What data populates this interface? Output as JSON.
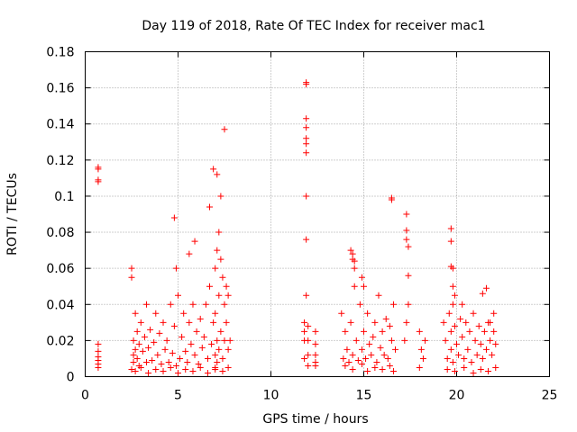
{
  "chart_data": {
    "type": "scatter",
    "title": "Day 119 of 2018, Rate Of TEC Index for receiver mac1",
    "xlabel": "GPS time / hours",
    "ylabel": "ROTI / TECUs",
    "xlim": [
      0,
      25
    ],
    "ylim": [
      0,
      0.18
    ],
    "x_ticks": [
      "0",
      "5",
      "10",
      "15",
      "20",
      "25"
    ],
    "y_ticks": [
      "0",
      "0.02",
      "0.04",
      "0.06",
      "0.08",
      "0.1",
      "0.12",
      "0.14",
      "0.16",
      "0.18"
    ],
    "grid": true,
    "marker": "+",
    "color": "#ff0000",
    "series": [
      {
        "name": "ROTI",
        "x": [
          0.7,
          0.7,
          0.7,
          0.7,
          0.7,
          0.7,
          0.7,
          0.7,
          0.7,
          0.7,
          2.5,
          2.5,
          2.6,
          2.6,
          2.6,
          2.7,
          2.7,
          2.8,
          2.8,
          2.9,
          2.9,
          3.0,
          3.1,
          3.2,
          3.3,
          3.3,
          3.4,
          3.5,
          3.6,
          3.7,
          3.8,
          3.9,
          4.0,
          4.1,
          4.2,
          4.3,
          4.4,
          4.5,
          4.6,
          4.7,
          4.8,
          4.9,
          5.0,
          5.1,
          5.2,
          5.3,
          5.4,
          5.5,
          5.6,
          5.7,
          5.8,
          5.9,
          6.0,
          6.1,
          6.2,
          6.3,
          6.4,
          6.5,
          6.6,
          6.7,
          6.8,
          6.9,
          7.0,
          7.0,
          7.0,
          7.0,
          7.1,
          7.1,
          7.1,
          7.2,
          7.2,
          7.2,
          7.3,
          7.3,
          7.4,
          7.4,
          7.5,
          7.5,
          7.6,
          7.6,
          7.7,
          7.7,
          7.8,
          2.5,
          2.7,
          3.0,
          3.4,
          3.8,
          4.2,
          4.6,
          5.0,
          5.4,
          5.8,
          6.2,
          6.6,
          7.0,
          7.4,
          7.7,
          4.8,
          4.9,
          5.6,
          5.9,
          6.7,
          6.9,
          7.1,
          7.3,
          7.5,
          11.8,
          11.8,
          11.8,
          11.8,
          11.9,
          11.9,
          11.9,
          11.9,
          11.9,
          11.9,
          11.9,
          11.9,
          11.9,
          11.9,
          12.0,
          12.0,
          12.0,
          12.0,
          12.4,
          12.4,
          12.4,
          12.4,
          12.4,
          13.8,
          13.9,
          14.0,
          14.1,
          14.2,
          14.3,
          14.4,
          14.5,
          14.6,
          14.7,
          14.8,
          14.9,
          15.0,
          15.1,
          15.2,
          15.3,
          15.4,
          15.5,
          15.6,
          15.7,
          15.8,
          15.9,
          16.0,
          16.1,
          16.2,
          16.3,
          16.4,
          16.5,
          16.6,
          16.7,
          14.0,
          14.4,
          14.9,
          15.2,
          15.6,
          16.0,
          16.4,
          16.6,
          14.3,
          14.4,
          14.4,
          14.5,
          14.5,
          14.9,
          15.0,
          16.5,
          16.5,
          17.3,
          17.3,
          17.3,
          17.4,
          17.4,
          17.4,
          17.3,
          17.2,
          18.0,
          18.1,
          18.2,
          18.3,
          18.0,
          19.3,
          19.4,
          19.5,
          19.6,
          19.7,
          19.7,
          19.8,
          19.8,
          19.9,
          20.0,
          20.1,
          20.2,
          20.3,
          20.4,
          20.5,
          20.6,
          20.7,
          20.8,
          20.9,
          21.0,
          21.1,
          21.2,
          21.3,
          21.4,
          21.5,
          21.6,
          21.7,
          21.8,
          21.9,
          22.0,
          22.1,
          19.7,
          19.7,
          19.7,
          19.8,
          19.8,
          19.9,
          20.3,
          21.4,
          21.6,
          21.8,
          22.0,
          19.5,
          19.9,
          20.4,
          20.9,
          21.3,
          21.7,
          22.1
        ],
        "y": [
          0.005,
          0.007,
          0.009,
          0.011,
          0.014,
          0.018,
          0.108,
          0.109,
          0.115,
          0.116,
          0.06,
          0.055,
          0.02,
          0.012,
          0.008,
          0.035,
          0.015,
          0.025,
          0.01,
          0.018,
          0.006,
          0.03,
          0.014,
          0.022,
          0.008,
          0.04,
          0.016,
          0.026,
          0.009,
          0.019,
          0.035,
          0.012,
          0.024,
          0.007,
          0.03,
          0.015,
          0.02,
          0.008,
          0.04,
          0.013,
          0.028,
          0.006,
          0.045,
          0.01,
          0.022,
          0.035,
          0.014,
          0.008,
          0.03,
          0.018,
          0.04,
          0.012,
          0.025,
          0.007,
          0.032,
          0.016,
          0.022,
          0.04,
          0.01,
          0.05,
          0.018,
          0.03,
          0.06,
          0.035,
          0.012,
          0.005,
          0.07,
          0.02,
          0.008,
          0.08,
          0.045,
          0.015,
          0.065,
          0.025,
          0.055,
          0.01,
          0.04,
          0.02,
          0.05,
          0.03,
          0.045,
          0.015,
          0.02,
          0.004,
          0.003,
          0.005,
          0.002,
          0.004,
          0.003,
          0.005,
          0.002,
          0.004,
          0.003,
          0.005,
          0.002,
          0.004,
          0.003,
          0.005,
          0.088,
          0.06,
          0.068,
          0.075,
          0.094,
          0.115,
          0.112,
          0.1,
          0.137,
          0.03,
          0.025,
          0.02,
          0.01,
          0.163,
          0.162,
          0.143,
          0.138,
          0.132,
          0.129,
          0.124,
          0.1,
          0.076,
          0.045,
          0.028,
          0.02,
          0.012,
          0.006,
          0.025,
          0.018,
          0.012,
          0.008,
          0.006,
          0.035,
          0.01,
          0.025,
          0.015,
          0.008,
          0.03,
          0.012,
          0.05,
          0.02,
          0.009,
          0.04,
          0.015,
          0.025,
          0.01,
          0.035,
          0.018,
          0.012,
          0.022,
          0.03,
          0.008,
          0.045,
          0.016,
          0.025,
          0.012,
          0.032,
          0.01,
          0.028,
          0.02,
          0.04,
          0.015,
          0.006,
          0.004,
          0.007,
          0.003,
          0.005,
          0.004,
          0.006,
          0.003,
          0.07,
          0.068,
          0.065,
          0.064,
          0.06,
          0.055,
          0.05,
          0.099,
          0.098,
          0.09,
          0.081,
          0.076,
          0.072,
          0.056,
          0.04,
          0.03,
          0.02,
          0.025,
          0.015,
          0.01,
          0.02,
          0.005,
          0.03,
          0.02,
          0.01,
          0.035,
          0.025,
          0.015,
          0.04,
          0.008,
          0.028,
          0.018,
          0.012,
          0.032,
          0.022,
          0.01,
          0.03,
          0.015,
          0.025,
          0.008,
          0.035,
          0.02,
          0.012,
          0.028,
          0.018,
          0.01,
          0.025,
          0.015,
          0.03,
          0.02,
          0.012,
          0.035,
          0.018,
          0.082,
          0.075,
          0.061,
          0.06,
          0.05,
          0.045,
          0.04,
          0.046,
          0.049,
          0.03,
          0.025,
          0.004,
          0.003,
          0.005,
          0.002,
          0.004,
          0.003,
          0.005
        ]
      }
    ]
  }
}
